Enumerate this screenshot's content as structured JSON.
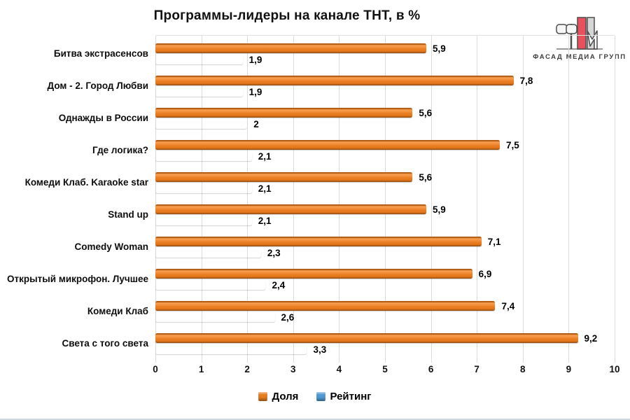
{
  "title": "Программы-лидеры на канале ТНТ, в %",
  "logo": {
    "text": "ФАСАД МЕДИА ГРУПП",
    "red": "#E8505E",
    "gray": "#C9C9C9"
  },
  "legend": {
    "items": [
      {
        "label": "Доля",
        "color": "#E87D1E"
      },
      {
        "label": "Рейтинг",
        "color": "#4E9BD5"
      }
    ]
  },
  "chart_data": {
    "type": "bar",
    "orientation": "horizontal",
    "title": "Программы-лидеры на канале ТНТ, в %",
    "categories": [
      "Битва экстрасенсов",
      "Дом - 2. Город Любви",
      "Однажды в России",
      "Где логика?",
      "Комеди Клаб. Karaoke star",
      "Stand up",
      "Comedy Woman",
      "Открытый микрофон. Лучшее",
      "Комеди Клаб",
      "Света с того света"
    ],
    "series": [
      {
        "name": "Доля",
        "color": "#E87D1E",
        "values": [
          5.9,
          7.8,
          5.6,
          7.5,
          5.6,
          5.9,
          7.1,
          6.9,
          7.4,
          9.2
        ],
        "value_labels": [
          "5,9",
          "7,8",
          "5,6",
          "7,5",
          "5,6",
          "5,9",
          "7,1",
          "6,9",
          "7,4",
          "9,2"
        ]
      },
      {
        "name": "Рейтинг",
        "color": "#4E9BD5",
        "values": [
          1.9,
          1.9,
          2,
          2.1,
          2.1,
          2.1,
          2.3,
          2.4,
          2.6,
          3.3
        ],
        "value_labels": [
          "1,9",
          "1,9",
          "2",
          "2,1",
          "2,1",
          "2,1",
          "2,3",
          "2,4",
          "2,6",
          "3,3"
        ]
      }
    ],
    "xlim": [
      0,
      10
    ],
    "xticks": [
      0,
      1,
      2,
      3,
      4,
      5,
      6,
      7,
      8,
      9,
      10
    ],
    "grid": true,
    "legend_position": "bottom"
  }
}
